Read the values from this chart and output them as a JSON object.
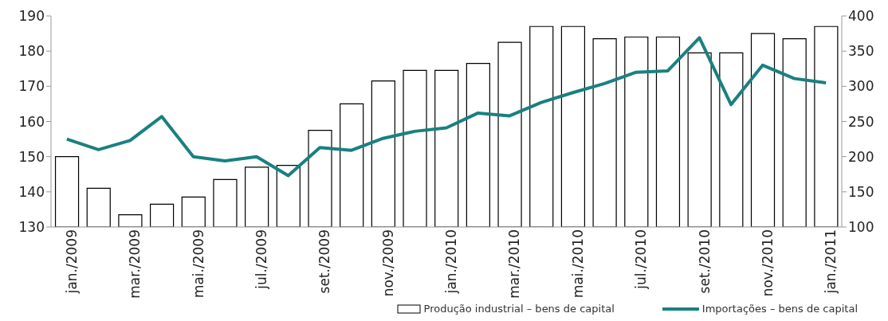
{
  "chart_data": {
    "type": "bar",
    "categories": [
      "jan./2009",
      null,
      "mar./2009",
      null,
      "mai./2009",
      null,
      "jul./2009",
      null,
      "set./2009",
      null,
      "nov./2009",
      null,
      "jan./2010",
      null,
      "mar./2010",
      null,
      "mai./2010",
      null,
      "jul./2010",
      null,
      "set./2010",
      null,
      "nov./2010",
      null,
      "jan./2011"
    ],
    "series": [
      {
        "name": "Produção industrial – bens de capital",
        "color": "#ffffff",
        "values": [
          150,
          141,
          133.5,
          136.5,
          138.5,
          143.5,
          147,
          147.5,
          157.5,
          165,
          171.5,
          174.5,
          174.5,
          176.5,
          182.5,
          187,
          187,
          183.5,
          184,
          184,
          179.5,
          179.5,
          185,
          183.5,
          187
        ]
      },
      {
        "name": "Importações – bens de capital",
        "type": "line",
        "axis": "y2",
        "color": "#1a8080",
        "values": [
          225,
          210,
          223,
          257,
          200,
          194,
          200,
          173,
          213,
          209,
          226,
          236,
          241,
          262,
          258,
          277,
          291,
          304,
          320,
          322,
          369,
          274,
          330,
          311,
          305
        ]
      }
    ],
    "ylim": [
      130,
      190
    ],
    "yticks": [
      130,
      140,
      150,
      160,
      170,
      180,
      190
    ],
    "y2lim": [
      100,
      400
    ],
    "y2ticks": [
      100,
      150,
      200,
      250,
      300,
      350,
      400
    ],
    "grid": false,
    "legend": "bottom right",
    "marker": "none",
    "line_style": "solid"
  }
}
